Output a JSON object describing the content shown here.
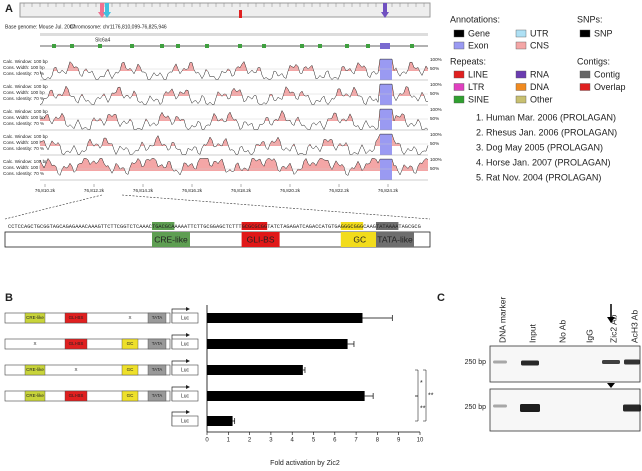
{
  "panel_a": {
    "label": "A",
    "genome": "Base genome: Mouse Jul. 2007",
    "chromosome": "Chromosome: chr11",
    "range": "76,810,099-76,825,946",
    "gene": "Slc6a4",
    "track_settings": [
      "Calc. Window: 100 bp",
      "Cons. Width: 100 bp",
      "Cons. Identity: 70 %"
    ],
    "scale_labels": [
      "100%",
      "50%"
    ],
    "positions": [
      "76,810.2k",
      "76,812.2k",
      "76,814.2k",
      "76,816.2k",
      "76,818.2k",
      "76,820.2k",
      "76,822.2k",
      "76,824.2k"
    ],
    "sequence": [
      {
        "text": "CCTCCAGCTGCGGTAGCAGAGAAACAAAGTTCTTCGGTCTCAAAC",
        "element": null
      },
      {
        "text": "TGACGCA",
        "element": 0
      },
      {
        "text": "AAAATTCTTGCGGAGCTCTTT",
        "element": null
      },
      {
        "text": "GCGCGCGG",
        "element": 1
      },
      {
        "text": "TATCTAGAGATCAGACCATGTGA",
        "element": null
      },
      {
        "text": "GGGCGGG",
        "element": 2
      },
      {
        "text": "CAAG",
        "element": null
      },
      {
        "text": "TATAAAA",
        "element": 3
      },
      {
        "text": "TAGCGCG",
        "element": null
      }
    ],
    "elements": [
      {
        "label": "CRE-like",
        "color": "#5e9e52"
      },
      {
        "label": "GLI-BS",
        "color": "#e01818"
      },
      {
        "label": "GC",
        "color": "#f2dc1c"
      },
      {
        "label": "TATA-like",
        "color": "#6e6e6e"
      }
    ],
    "legend": {
      "annotations_title": "Annotations:",
      "annotations": [
        {
          "name": "Gene",
          "color": "#000000"
        },
        {
          "name": "UTR",
          "color": "#aee0f4"
        },
        {
          "name": "Exon",
          "color": "#9a9af2"
        },
        {
          "name": "CNS",
          "color": "#f4a6a6"
        }
      ],
      "repeats_title": "Repeats:",
      "repeats": [
        {
          "name": "LINE",
          "color": "#e02020"
        },
        {
          "name": "RNA",
          "color": "#6a3cb0"
        },
        {
          "name": "LTR",
          "color": "#e040c0"
        },
        {
          "name": "DNA",
          "color": "#f08a20"
        },
        {
          "name": "SINE",
          "color": "#30a030"
        },
        {
          "name": "Other",
          "color": "#c8c070"
        }
      ],
      "snps_title": "SNPs:",
      "snps": [
        {
          "name": "SNP",
          "color": "#000000"
        }
      ],
      "contigs_title": "Contigs:",
      "contigs": [
        {
          "name": "Contig",
          "color": "#666666"
        },
        {
          "name": "Overlap",
          "color": "#e02020"
        }
      ]
    },
    "species": [
      "1. Human Mar. 2006 (PROLAGAN)",
      "2. Rhesus Jan. 2006 (PROLAGAN)",
      "3. Dog May 2005 (PROLAGAN)",
      "4. Horse Jan. 2007 (PROLAGAN)",
      "5. Rat Nov. 2004 (PROLAGAN)"
    ]
  },
  "panel_b": {
    "label": "B",
    "reporter": "Luc",
    "slot_colors": [
      "#c8d43a",
      "#e02020",
      "#eee02a",
      "#999999"
    ],
    "constructs": [
      {
        "elements": [
          "CRE-like",
          "GLI-BS",
          "X",
          "TATA"
        ],
        "present": [
          true,
          true,
          false,
          true
        ]
      },
      {
        "elements": [
          "X",
          "GLI-BS",
          "GC",
          "TATA"
        ],
        "present": [
          false,
          true,
          true,
          true
        ]
      },
      {
        "elements": [
          "CRE-like",
          "X",
          "GC",
          "TATA"
        ],
        "present": [
          true,
          false,
          true,
          true
        ]
      },
      {
        "elements": [
          "CRE-like",
          "GLI-BS",
          "GC",
          "TATA"
        ],
        "present": [
          true,
          true,
          true,
          true
        ]
      },
      {
        "elements": [],
        "present": []
      }
    ],
    "significance": [
      "*",
      "**",
      "**"
    ]
  },
  "chart_data": {
    "type": "bar",
    "orientation": "horizontal",
    "xlabel": "Fold activation by Zic2",
    "categories": [
      null,
      null,
      null,
      null,
      null
    ],
    "values": [
      7.3,
      6.6,
      4.5,
      7.4,
      1.2
    ],
    "errors": [
      1.4,
      0.3,
      0.1,
      0.4,
      0.1
    ],
    "color": "#000000",
    "xlim": [
      0,
      10
    ],
    "xticks": [
      0,
      1,
      2,
      3,
      4,
      5,
      6,
      7,
      8,
      9,
      10
    ]
  },
  "panel_c": {
    "label": "C",
    "lanes": [
      "DNA marker",
      "Input",
      "No Ab",
      "IgG",
      "Zic2 Ab",
      "AcH3 Ab"
    ],
    "size_labels": [
      "250 bp",
      "250 bp"
    ]
  }
}
